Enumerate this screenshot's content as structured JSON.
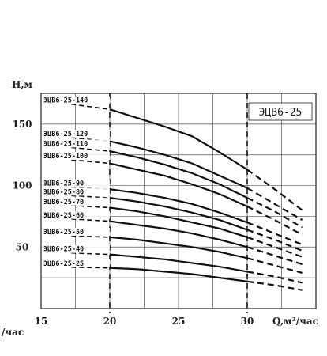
{
  "chart_data": {
    "type": "line",
    "title": "ЭЦВ6-25",
    "ylabel": "Н,м",
    "xlabel": "Q,м³/час",
    "x_ticks": [
      "15",
      "20",
      "25",
      "30"
    ],
    "y_ticks": [
      "50",
      "100",
      "150"
    ],
    "xlim": [
      15,
      35
    ],
    "ylim": [
      0,
      175
    ],
    "grid": true,
    "solid_range": [
      20,
      30
    ],
    "stray_text": "/час",
    "series": [
      {
        "name": "ЭЦВ6-25-140",
        "x": [
          20,
          22,
          24,
          26,
          28,
          30,
          32,
          34
        ],
        "y": [
          162,
          155,
          148,
          140,
          127,
          113,
          97,
          80
        ]
      },
      {
        "name": "ЭЦВ6-25-120",
        "x": [
          20,
          22,
          24,
          26,
          28,
          30,
          32,
          34
        ],
        "y": [
          136,
          131,
          125,
          118,
          108,
          98,
          85,
          72
        ]
      },
      {
        "name": "ЭЦВ6-25-110",
        "x": [
          20,
          22,
          24,
          26,
          28,
          30,
          32,
          34
        ],
        "y": [
          128,
          123,
          117,
          110,
          101,
          90,
          79,
          66
        ]
      },
      {
        "name": "ЭЦВ6-25-100",
        "x": [
          20,
          22,
          24,
          26,
          28,
          30,
          32,
          34
        ],
        "y": [
          118,
          113,
          108,
          101,
          93,
          83,
          72,
          60
        ]
      },
      {
        "name": "ЭЦВ6-25-90",
        "x": [
          20,
          22,
          24,
          26,
          28,
          30,
          32,
          34
        ],
        "y": [
          97,
          94,
          90,
          85,
          78,
          70,
          61,
          52
        ]
      },
      {
        "name": "ЭЦВ6-25-80",
        "x": [
          20,
          22,
          24,
          26,
          28,
          30,
          32,
          34
        ],
        "y": [
          90,
          87,
          83,
          78,
          72,
          64,
          56,
          47
        ]
      },
      {
        "name": "ЭЦВ6-25-70",
        "x": [
          20,
          22,
          24,
          26,
          28,
          30,
          32,
          34
        ],
        "y": [
          82,
          79,
          75,
          70,
          65,
          58,
          50,
          42
        ]
      },
      {
        "name": "ЭЦВ6-25-60",
        "x": [
          20,
          22,
          24,
          26,
          28,
          30,
          32,
          34
        ],
        "y": [
          71,
          68,
          65,
          61,
          56,
          50,
          43,
          36
        ]
      },
      {
        "name": "ЭЦВ6-25-50",
        "x": [
          20,
          22,
          24,
          26,
          28,
          30,
          32,
          34
        ],
        "y": [
          58,
          56,
          53,
          50,
          46,
          41,
          35,
          29
        ]
      },
      {
        "name": "ЭЦВ6-25-40",
        "x": [
          20,
          22,
          24,
          26,
          28,
          30,
          32,
          34
        ],
        "y": [
          44,
          42,
          40,
          37,
          34,
          30,
          26,
          21
        ]
      },
      {
        "name": "ЭЦВ6-25-25",
        "x": [
          20,
          22,
          24,
          26,
          28,
          30,
          32,
          34
        ],
        "y": [
          33,
          32,
          30,
          28,
          25,
          22,
          19,
          15
        ]
      }
    ]
  },
  "watermark": {
    "color": "#3a6bf0"
  }
}
